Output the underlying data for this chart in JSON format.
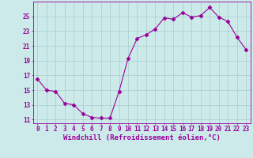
{
  "x": [
    0,
    1,
    2,
    3,
    4,
    5,
    6,
    7,
    8,
    9,
    10,
    11,
    12,
    13,
    14,
    15,
    16,
    17,
    18,
    19,
    20,
    21,
    22,
    23
  ],
  "y": [
    16.5,
    15.0,
    14.8,
    13.2,
    13.0,
    11.8,
    11.3,
    11.2,
    11.2,
    14.8,
    19.3,
    22.0,
    22.5,
    23.3,
    24.8,
    24.6,
    25.5,
    24.9,
    25.1,
    26.2,
    24.9,
    24.3,
    22.2,
    20.5
  ],
  "line_color": "#990099",
  "marker": "D",
  "marker_size": 2.5,
  "bg_color": "#cceaea",
  "grid_color": "#aacccc",
  "xlabel": "Windchill (Refroidissement éolien,°C)",
  "xlim": [
    -0.5,
    23.5
  ],
  "ylim": [
    10.5,
    27.0
  ],
  "yticks": [
    11,
    13,
    15,
    17,
    19,
    21,
    23,
    25
  ],
  "xticks": [
    0,
    1,
    2,
    3,
    4,
    5,
    6,
    7,
    8,
    9,
    10,
    11,
    12,
    13,
    14,
    15,
    16,
    17,
    18,
    19,
    20,
    21,
    22,
    23
  ],
  "axis_color": "#990099",
  "font_size_ticks": 5.5,
  "font_size_label": 6.5
}
